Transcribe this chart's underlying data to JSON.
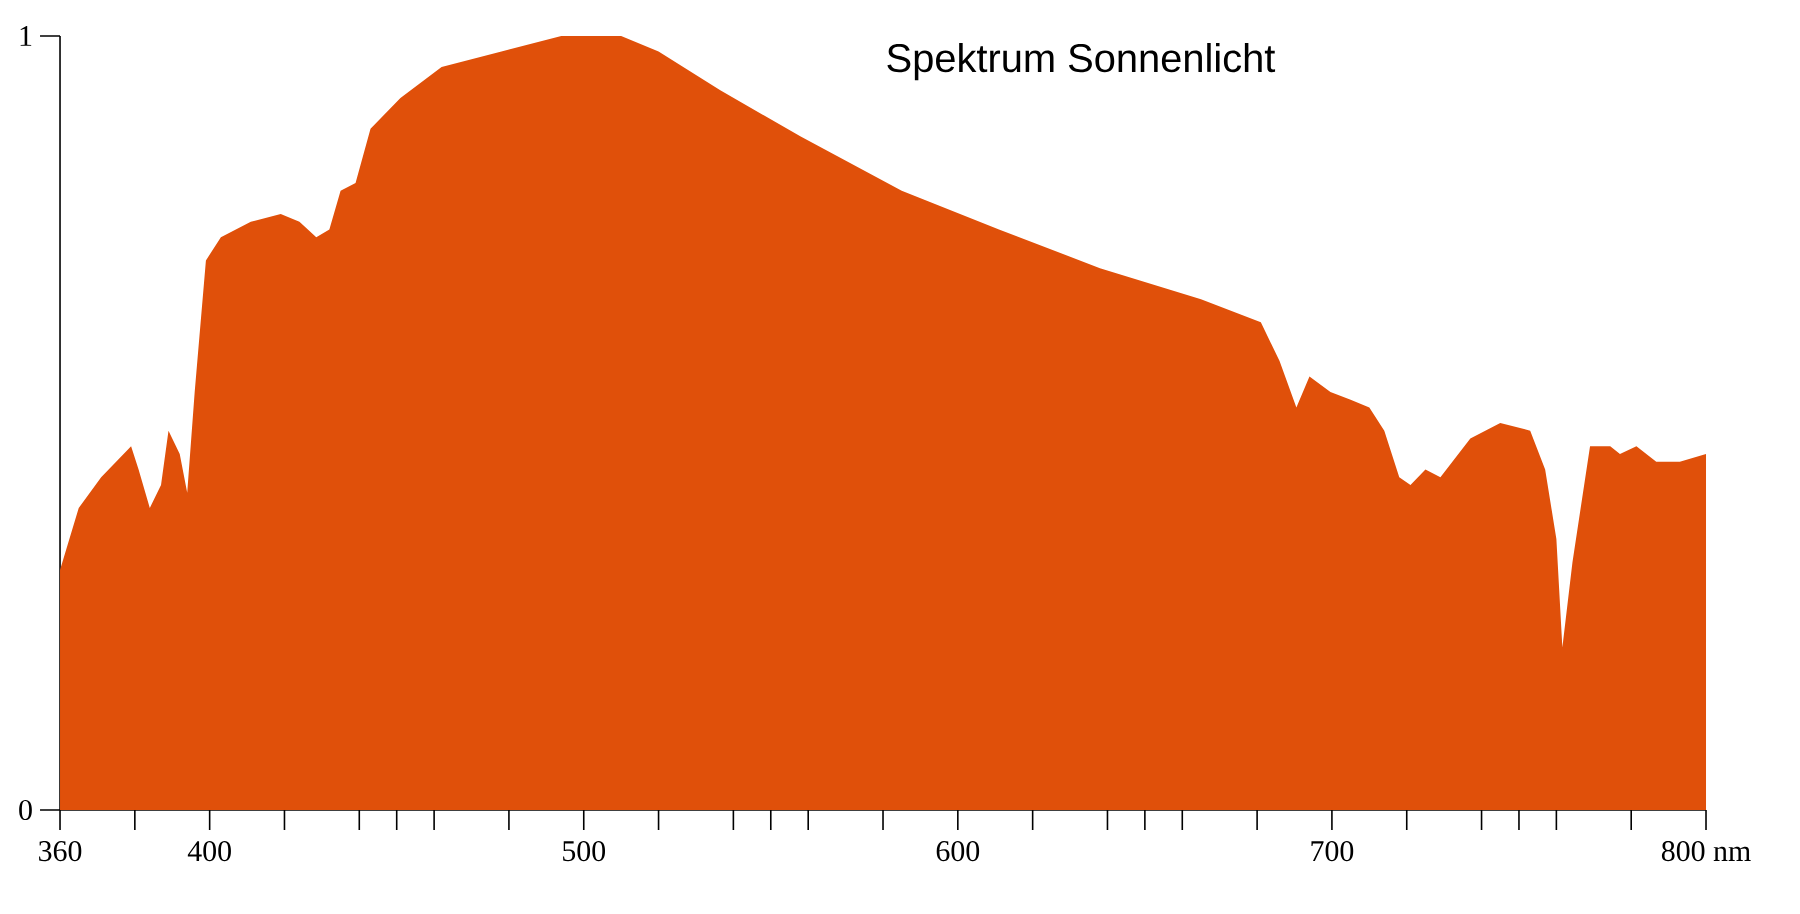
{
  "chart_data": {
    "type": "area",
    "title": "Spektrum Sonnenlicht",
    "x": [
      360,
      365,
      371,
      379,
      381,
      384,
      387,
      389,
      392,
      394,
      396,
      399,
      403,
      411,
      419,
      424,
      428.5,
      432,
      435,
      439,
      443,
      451,
      462,
      478,
      494,
      510,
      520,
      536.5,
      558,
      585,
      611,
      638,
      665,
      681,
      686,
      690.5,
      694,
      699.6,
      705,
      710,
      714,
      718,
      721,
      725,
      729,
      737,
      745,
      753,
      757,
      760,
      761.6,
      764.3,
      769,
      774.4,
      777,
      781.4,
      786.7,
      793,
      800
    ],
    "values": [
      0.31,
      0.39,
      0.43,
      0.47,
      0.44,
      0.39,
      0.42,
      0.49,
      0.46,
      0.41,
      0.54,
      0.71,
      0.74,
      0.76,
      0.77,
      0.76,
      0.74,
      0.75,
      0.8,
      0.81,
      0.88,
      0.92,
      0.96,
      0.98,
      1.0,
      1.0,
      0.98,
      0.93,
      0.87,
      0.8,
      0.75,
      0.7,
      0.66,
      0.63,
      0.58,
      0.52,
      0.56,
      0.54,
      0.53,
      0.52,
      0.49,
      0.43,
      0.42,
      0.44,
      0.43,
      0.48,
      0.5,
      0.49,
      0.44,
      0.35,
      0.21,
      0.32,
      0.47,
      0.47,
      0.46,
      0.47,
      0.45,
      0.45,
      0.46
    ],
    "color": "#e0500a",
    "xlim": [
      360,
      800
    ],
    "ylim": [
      0,
      1
    ],
    "xticks": [
      360,
      {
        "value": 380,
        "label": null
      },
      400,
      {
        "value": 420,
        "label": null
      },
      {
        "value": 440,
        "label": null
      },
      {
        "value": 450,
        "label": null
      },
      {
        "value": 460,
        "label": null
      },
      {
        "value": 480,
        "label": null
      },
      500,
      {
        "value": 520,
        "label": null
      },
      {
        "value": 540,
        "label": null
      },
      {
        "value": 550,
        "label": null
      },
      {
        "value": 560,
        "label": null
      },
      {
        "value": 580,
        "label": null
      },
      600,
      {
        "value": 620,
        "label": null
      },
      {
        "value": 640,
        "label": null
      },
      {
        "value": 650,
        "label": null
      },
      {
        "value": 660,
        "label": null
      },
      {
        "value": 680,
        "label": null
      },
      700,
      {
        "value": 720,
        "label": null
      },
      {
        "value": 740,
        "label": null
      },
      {
        "value": 750,
        "label": null
      },
      {
        "value": 760,
        "label": null
      },
      {
        "value": 780,
        "label": null
      },
      {
        "value": 800,
        "label": "800 nm"
      }
    ],
    "yticks": [
      0,
      1
    ]
  }
}
